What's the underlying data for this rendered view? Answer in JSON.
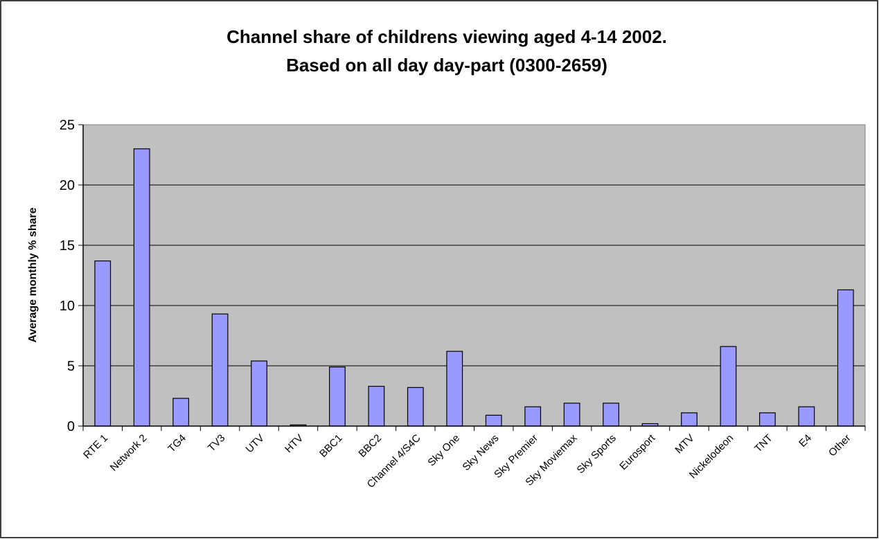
{
  "chart_data": {
    "type": "bar",
    "title_lines": [
      "Channel share of childrens viewing aged 4-14 2002.",
      "Based on all day day-part  (0300-2659)"
    ],
    "xlabel": "",
    "ylabel": "Average monthly % share",
    "ylim": [
      0,
      25
    ],
    "yticks": [
      "0",
      "5",
      "10",
      "15",
      "20",
      "25"
    ],
    "grid": true,
    "legend": "none",
    "categories": [
      "RTE 1",
      "Network 2",
      "TG4",
      "TV3",
      "UTV",
      "HTV",
      "BBC1",
      "BBC2",
      "Channel 4/S4C",
      "Sky One",
      "Sky News",
      "Sky Premier",
      "Sky Moviemax",
      "Sky Sports",
      "Eurosport",
      "MTV",
      "Nickelodeon",
      "TNT",
      "E4",
      "Other"
    ],
    "values": [
      13.7,
      23.0,
      2.3,
      9.3,
      5.4,
      0.1,
      4.9,
      3.3,
      3.2,
      6.2,
      0.9,
      1.6,
      1.9,
      1.9,
      0.2,
      1.1,
      6.6,
      1.1,
      1.6,
      11.3
    ],
    "colors": {
      "bar_fill": "#9999ff",
      "bar_stroke": "#000000",
      "plot_background": "#c0c0c0",
      "gridline": "#000000"
    }
  }
}
